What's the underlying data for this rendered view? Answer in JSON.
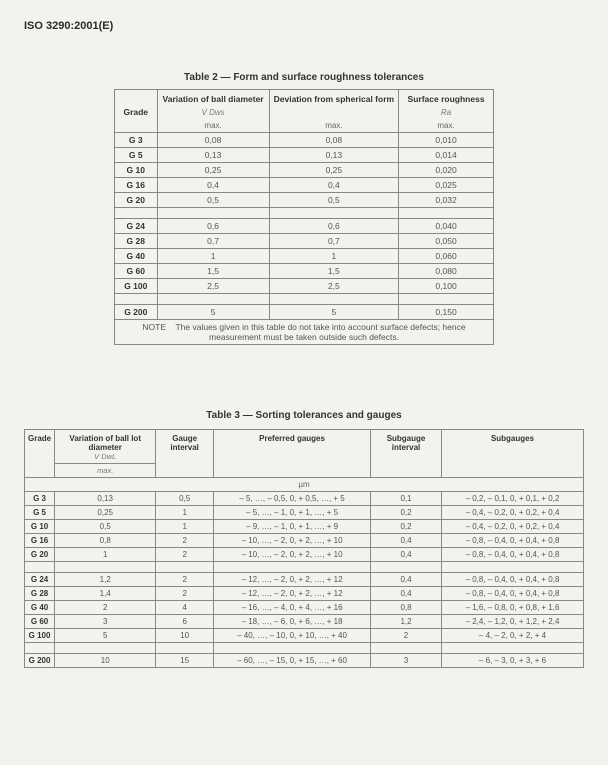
{
  "doc_id": "ISO 3290:2001(E)",
  "table2": {
    "title": "Table 2 — Form and surface roughness tolerances",
    "headers": {
      "grade": "Grade",
      "col1_top": "Variation of ball diameter",
      "col1_mid": "V Dws",
      "col1_bot": "max.",
      "col2_top": "Deviation from spherical form",
      "col2_bot": "max.",
      "col3_top": "Surface roughness",
      "col3_mid": "Ra",
      "col3_bot": "max."
    },
    "rows1": [
      {
        "g": "G 3",
        "v": "0,08",
        "d": "0,08",
        "r": "0,010"
      },
      {
        "g": "G 5",
        "v": "0,13",
        "d": "0,13",
        "r": "0,014"
      },
      {
        "g": "G 10",
        "v": "0,25",
        "d": "0,25",
        "r": "0,020"
      },
      {
        "g": "G 16",
        "v": "0,4",
        "d": "0,4",
        "r": "0,025"
      },
      {
        "g": "G 20",
        "v": "0,5",
        "d": "0,5",
        "r": "0,032"
      }
    ],
    "rows2": [
      {
        "g": "G 24",
        "v": "0,6",
        "d": "0,6",
        "r": "0,040"
      },
      {
        "g": "G 28",
        "v": "0,7",
        "d": "0,7",
        "r": "0,050"
      },
      {
        "g": "G 40",
        "v": "1",
        "d": "1",
        "r": "0,060"
      },
      {
        "g": "G 60",
        "v": "1,5",
        "d": "1,5",
        "r": "0,080"
      },
      {
        "g": "G 100",
        "v": "2,5",
        "d": "2,5",
        "r": "0,100"
      }
    ],
    "rows3": [
      {
        "g": "G 200",
        "v": "5",
        "d": "5",
        "r": "0,150"
      }
    ],
    "note": "NOTE    The values given in this table do not take into account surface defects; hence measurement must be taken outside such defects."
  },
  "table3": {
    "title": "Table 3 — Sorting tolerances and gauges",
    "headers": {
      "grade": "Grade",
      "col1_top": "Variation of ball lot diameter",
      "col1_mid": "V DwL",
      "col1_bot": "max.",
      "col2": "Gauge interval",
      "col3": "Preferred gauges",
      "col4": "Subgauge interval",
      "col5": "Subgauges",
      "unit": "µm"
    },
    "rows1": [
      {
        "g": "G 3",
        "v": "0,13",
        "gi": "0,5",
        "pg": "– 5, …, – 0,5,   0,  + 0,5, …, + 5",
        "si": "0,1",
        "sg": "– 0,2, – 0,1,  0, + 0,1, + 0,2"
      },
      {
        "g": "G 5",
        "v": "0,25",
        "gi": "1",
        "pg": "– 5, …, – 1,    0,  + 1, …, + 5",
        "si": "0,2",
        "sg": "– 0,4, – 0,2,  0, + 0,2, + 0,4"
      },
      {
        "g": "G 10",
        "v": "0,5",
        "gi": "1",
        "pg": "– 9, …, – 1,    0,  + 1, …, + 9",
        "si": "0,2",
        "sg": "– 0,4, – 0,2,  0, + 0,2, + 0,4"
      },
      {
        "g": "G 16",
        "v": "0,8",
        "gi": "2",
        "pg": "– 10, …, – 2,   0,  + 2, …, + 10",
        "si": "0,4",
        "sg": "– 0,8, – 0,4,  0, + 0,4, + 0,8"
      },
      {
        "g": "G 20",
        "v": "1",
        "gi": "2",
        "pg": "– 10, …, – 2,   0,  + 2, …, + 10",
        "si": "0,4",
        "sg": "– 0,8, – 0,4,  0, + 0,4, + 0,8"
      }
    ],
    "rows2": [
      {
        "g": "G 24",
        "v": "1,2",
        "gi": "2",
        "pg": "– 12, …, – 2,   0,  + 2, …, + 12",
        "si": "0,4",
        "sg": "– 0,8, – 0,4,  0, + 0,4, + 0,8"
      },
      {
        "g": "G 28",
        "v": "1,4",
        "gi": "2",
        "pg": "– 12, …, – 2,   0,  + 2, …, + 12",
        "si": "0,4",
        "sg": "– 0,8, – 0,4,  0, + 0,4, + 0,8"
      },
      {
        "g": "G 40",
        "v": "2",
        "gi": "4",
        "pg": "– 16, …, – 4,   0,  + 4, …, + 16",
        "si": "0,8",
        "sg": "– 1,6, – 0,8,  0, + 0,8, + 1,6"
      },
      {
        "g": "G 60",
        "v": "3",
        "gi": "6",
        "pg": "– 18, …, – 6,   0,  + 6, …, + 18",
        "si": "1,2",
        "sg": "– 2,4, – 1,2,  0, + 1,2, + 2,4"
      },
      {
        "g": "G 100",
        "v": "5",
        "gi": "10",
        "pg": "– 40, …, – 10,  0,  + 10, …, + 40",
        "si": "2",
        "sg": "– 4,   – 2,    0,  + 2,   + 4"
      }
    ],
    "rows3": [
      {
        "g": "G 200",
        "v": "10",
        "gi": "15",
        "pg": "– 60, …, – 15,  0,  + 15, …, + 60",
        "si": "3",
        "sg": "– 6,   – 3,    0,  + 3,   + 6"
      }
    ]
  }
}
